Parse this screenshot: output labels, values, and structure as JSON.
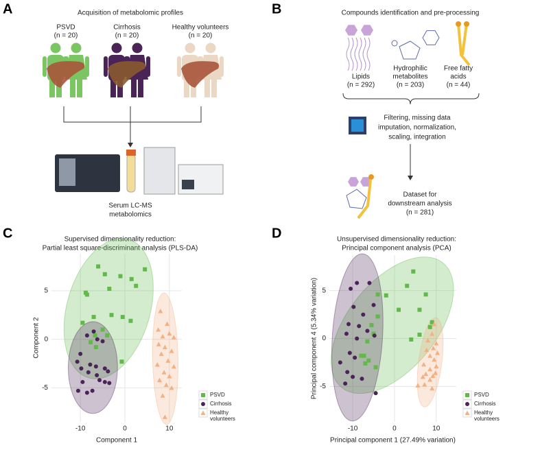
{
  "panels": {
    "a": "A",
    "b": "B",
    "c": "C",
    "d": "D"
  },
  "acquisition": {
    "title": "Acquisition of metabolomic profiles",
    "groups": [
      {
        "name": "PSVD",
        "n": "(n = 20)"
      },
      {
        "name": "Cirrhosis",
        "n": "(n = 20)"
      },
      {
        "name": "Healthy volunteers",
        "n": "(n = 20)"
      }
    ],
    "method": [
      "Serum LC-MS",
      "metabolomics"
    ]
  },
  "processing": {
    "title": "Compounds identification and pre-processing",
    "compounds": [
      {
        "name": [
          "Lipids"
        ],
        "n": "(n = 292)"
      },
      {
        "name": [
          "Hydrophilic",
          "metabolites"
        ],
        "n": "(n = 203)"
      },
      {
        "name": [
          "Free fatty",
          "acids"
        ],
        "n": "(n = 44)"
      }
    ],
    "steps": [
      "Filtering, missing data",
      "imputation, normalization,",
      "scaling, integration"
    ],
    "dataset": [
      "Dataset for",
      "downstream analysis",
      "(n = 281)"
    ]
  },
  "chart_data": [
    {
      "type": "scatter",
      "title": "Supervised dimensionality reduction:",
      "subtitle": "Partial least square-discriminant analysis (PLS-DA)",
      "xlabel": "Component 1",
      "ylabel": "Component 2",
      "xlim": [
        -16.5,
        12.8
      ],
      "ylim": [
        -8.5,
        8.8
      ],
      "xticks": [
        -10,
        0,
        10
      ],
      "yticks": [
        -5,
        0,
        5
      ],
      "grid": true,
      "ellipses": true,
      "series": [
        {
          "name": "PSVD",
          "color": "#62b94a",
          "marker": "square",
          "x": [
            -8.5,
            -8.8,
            -6,
            -4.5,
            -3.5,
            -1,
            1.5,
            4.5,
            2.5,
            -7,
            -3,
            -0.5,
            1.3,
            -9.5,
            -5,
            -4,
            -7.7,
            -6.5,
            -0.7,
            -6.7
          ],
          "y": [
            4.6,
            4.8,
            7.5,
            6.7,
            5.2,
            6.5,
            6.2,
            7.2,
            5.5,
            2.3,
            2.5,
            2.3,
            1.9,
            1.7,
            1.0,
            0.4,
            -0.3,
            -0.8,
            -2.3,
            0.4
          ]
        },
        {
          "name": "Cirrhosis",
          "color": "#4a2357",
          "marker": "circle",
          "x": [
            -10.7,
            -8.5,
            -7,
            -6.2,
            -5,
            -7.8,
            -6.5,
            -4.5,
            -3.8,
            -9.8,
            -8.2,
            -5.7,
            -4.5,
            -10.5,
            -8.5,
            -7.3,
            -3.5,
            -9.5,
            -6.3,
            -10
          ],
          "y": [
            -2.3,
            0.4,
            0.8,
            0,
            -0.2,
            -2.6,
            -2.8,
            -3,
            -3.3,
            -3,
            -3.4,
            -4.2,
            -4.4,
            -5.3,
            -5.5,
            -5.3,
            -4.5,
            -4.4,
            -3.7,
            -1.5
          ]
        },
        {
          "name": "Healthy volunteers",
          "color": "#f2b185",
          "marker": "triangle",
          "x": [
            8,
            9.5,
            7.5,
            10,
            8.5,
            11,
            7.6,
            9,
            10.5,
            8.2,
            9.7,
            7.3,
            11,
            8.8,
            10,
            7.8,
            9.3,
            10.5,
            8.5,
            9
          ],
          "y": [
            2.9,
            1.6,
            1,
            0.6,
            0.3,
            0.2,
            -0.5,
            -0.8,
            -1.2,
            -1.5,
            -2.2,
            -2.6,
            -2.8,
            -3.4,
            -3.8,
            -4.2,
            -4.7,
            -5,
            -5.8,
            -8
          ]
        }
      ]
    },
    {
      "type": "scatter",
      "title": "Unsupervised dimensionality reduction:",
      "subtitle": "Principal component analysis (PCA)",
      "xlabel": "Principal component 1 (27.49% variation)",
      "ylabel": "Principal component 4 (5.34% variation)",
      "xlim": [
        -15.6,
        14.8
      ],
      "ylim": [
        -8.7,
        8.7
      ],
      "xticks": [
        -10,
        0,
        10
      ],
      "yticks": [
        -5,
        0,
        5
      ],
      "grid": true,
      "ellipses": true,
      "series": [
        {
          "name": "PSVD",
          "color": "#62b94a",
          "marker": "square",
          "x": [
            4.5,
            3,
            -4,
            -2,
            7.5,
            1,
            6,
            -4,
            9,
            8.5,
            -5.5,
            -5,
            6,
            -6.5,
            4,
            -8,
            -6.2,
            -7.3,
            -7,
            -4.5
          ],
          "y": [
            7,
            5.5,
            4.6,
            4.5,
            4.6,
            3,
            3,
            2.3,
            1.7,
            1.2,
            1.4,
            0.5,
            0.4,
            -0.3,
            -0.1,
            -1.8,
            -2.3,
            -1.8,
            -2.6,
            -3
          ]
        },
        {
          "name": "Cirrhosis",
          "color": "#4a2357",
          "marker": "circle",
          "x": [
            -6,
            -9,
            -10.5,
            -5,
            -9.8,
            -7.5,
            -11,
            -8.5,
            -6.5,
            -11.5,
            -9,
            -4.8,
            -10.7,
            -9.5,
            -13,
            -11.3,
            -10,
            -7.8,
            -11.8,
            -4.5
          ],
          "y": [
            5.8,
            5.8,
            5.2,
            3.5,
            3.3,
            2.5,
            1.5,
            1.3,
            0.8,
            0.5,
            0,
            0.3,
            -1.5,
            -2,
            -2.5,
            -3.5,
            -4,
            -4.2,
            -4.7,
            -5.7
          ]
        },
        {
          "name": "Healthy volunteers",
          "color": "#f2b185",
          "marker": "triangle",
          "x": [
            9.5,
            9,
            8,
            10,
            9.3,
            7.7,
            10.3,
            8.5,
            9.5,
            7,
            10,
            8.5,
            7.5,
            9.2,
            6.8,
            8.5,
            5.6,
            9,
            7.2,
            9.8
          ],
          "y": [
            1.5,
            0.5,
            -0.2,
            -0.5,
            -1,
            -1.2,
            -1.5,
            -1.8,
            -2.2,
            -2.7,
            -2.9,
            -3.2,
            -3.7,
            -3.9,
            -4,
            -4.3,
            -4.9,
            -5.2,
            -4.8,
            -3.6
          ]
        }
      ]
    }
  ]
}
